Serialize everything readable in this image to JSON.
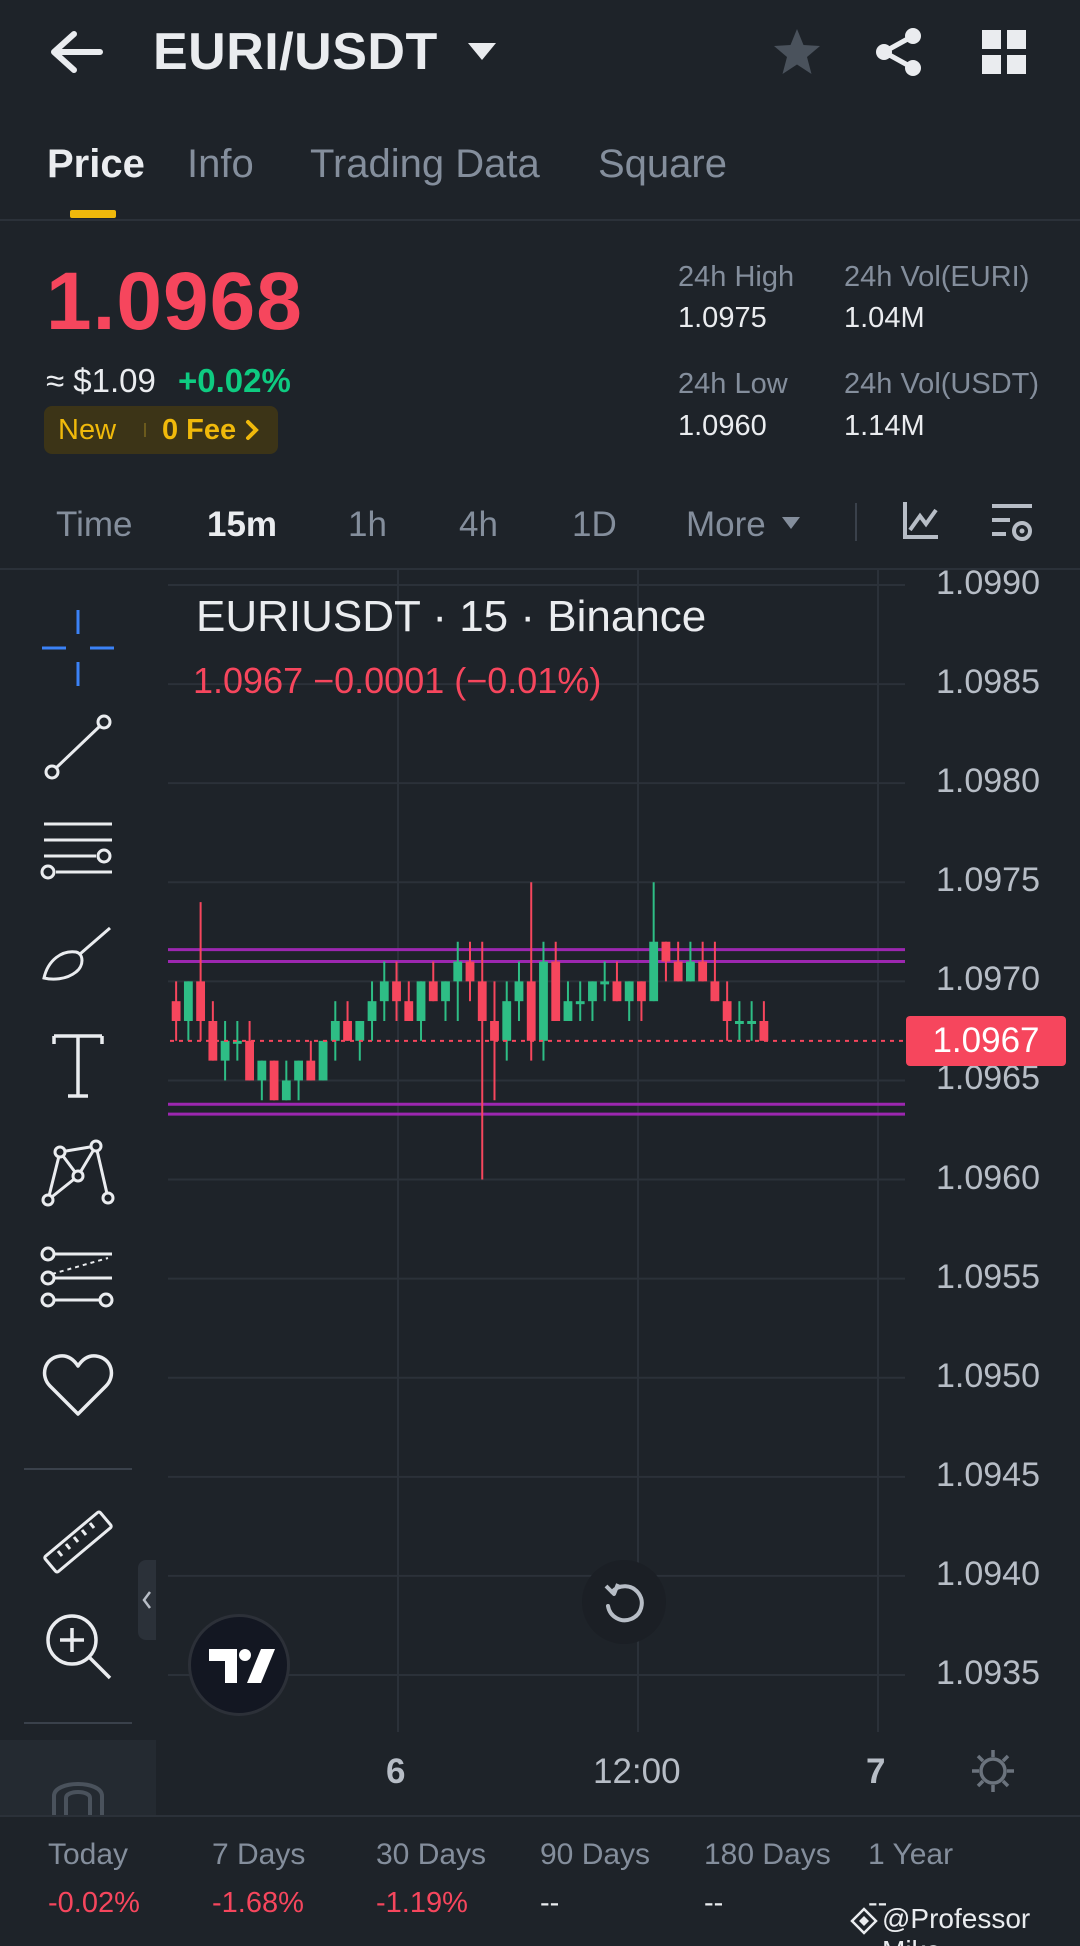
{
  "header": {
    "pair": "EURI/USDT"
  },
  "tabs": [
    "Price",
    "Info",
    "Trading Data",
    "Square"
  ],
  "ticker": {
    "last_price": "1.0968",
    "approx": "≈ $1.09",
    "change_pct": "+0.02%",
    "badge_new": "New",
    "badge_fee": "0 Fee",
    "high_label": "24h High",
    "high_value": "1.0975",
    "low_label": "24h Low",
    "low_value": "1.0960",
    "vol_base_label": "24h Vol(EURI)",
    "vol_base_value": "1.04M",
    "vol_quote_label": "24h Vol(USDT)",
    "vol_quote_value": "1.14M"
  },
  "intervals": {
    "time": "Time",
    "m15": "15m",
    "h1": "1h",
    "h4": "4h",
    "d1": "1D",
    "more": "More"
  },
  "chart": {
    "legend_title": "EURIUSDT · 15 · Binance",
    "legend_values": "1.0967  −0.0001 (−0.01%)",
    "current_price_tag": "1.0967",
    "x_ticks": [
      "6",
      "12:00",
      "7"
    ]
  },
  "chart_data": {
    "type": "candlestick",
    "symbol": "EURIUSDT",
    "interval": "15",
    "exchange": "Binance",
    "y_ticks": [
      "1.0990",
      "1.0985",
      "1.0980",
      "1.0975",
      "1.0970",
      "1.0965",
      "1.0960",
      "1.0955",
      "1.0950",
      "1.0945",
      "1.0940",
      "1.0935"
    ],
    "ylim": [
      1.0932,
      1.0991
    ],
    "last_price": 1.0967,
    "horizontal_lines": [
      1.09716,
      1.0971,
      1.09638,
      1.09633
    ],
    "candles": [
      [
        1.0969,
        1.097,
        1.0967,
        1.0968
      ],
      [
        1.0968,
        1.097,
        1.0967,
        1.097
      ],
      [
        1.097,
        1.0974,
        1.0967,
        1.0968
      ],
      [
        1.0968,
        1.0969,
        1.0966,
        1.0966
      ],
      [
        1.0966,
        1.0968,
        1.0965,
        1.0967
      ],
      [
        1.0967,
        1.0968,
        1.0966,
        1.0967
      ],
      [
        1.0967,
        1.0968,
        1.0965,
        1.0965
      ],
      [
        1.0965,
        1.0966,
        1.0964,
        1.0966
      ],
      [
        1.0966,
        1.0966,
        1.0964,
        1.0964
      ],
      [
        1.0964,
        1.0966,
        1.0964,
        1.0965
      ],
      [
        1.0965,
        1.0966,
        1.0964,
        1.0966
      ],
      [
        1.0966,
        1.0967,
        1.0965,
        1.0965
      ],
      [
        1.0965,
        1.0967,
        1.0965,
        1.0967
      ],
      [
        1.0967,
        1.0969,
        1.0966,
        1.0968
      ],
      [
        1.0968,
        1.0969,
        1.0967,
        1.0967
      ],
      [
        1.0967,
        1.0968,
        1.0966,
        1.0968
      ],
      [
        1.0968,
        1.097,
        1.0967,
        1.0969
      ],
      [
        1.0969,
        1.0971,
        1.0968,
        1.097
      ],
      [
        1.097,
        1.0971,
        1.0968,
        1.0969
      ],
      [
        1.0969,
        1.097,
        1.0968,
        1.0968
      ],
      [
        1.0968,
        1.097,
        1.0967,
        1.097
      ],
      [
        1.097,
        1.0971,
        1.0969,
        1.0969
      ],
      [
        1.0969,
        1.097,
        1.0968,
        1.097
      ],
      [
        1.097,
        1.0972,
        1.0968,
        1.0971
      ],
      [
        1.0971,
        1.0972,
        1.0969,
        1.097
      ],
      [
        1.097,
        1.0972,
        1.096,
        1.0968
      ],
      [
        1.0968,
        1.097,
        1.0964,
        1.0967
      ],
      [
        1.0967,
        1.097,
        1.0966,
        1.0969
      ],
      [
        1.0969,
        1.0971,
        1.0968,
        1.097
      ],
      [
        1.097,
        1.0975,
        1.0966,
        1.0967
      ],
      [
        1.0967,
        1.0972,
        1.0966,
        1.0971
      ],
      [
        1.0971,
        1.0972,
        1.0968,
        1.0968
      ],
      [
        1.0968,
        1.097,
        1.0968,
        1.0969
      ],
      [
        1.0969,
        1.097,
        1.0968,
        1.0969
      ],
      [
        1.0969,
        1.097,
        1.0968,
        1.097
      ],
      [
        1.097,
        1.0971,
        1.0969,
        1.097
      ],
      [
        1.097,
        1.0971,
        1.0969,
        1.0969
      ],
      [
        1.0969,
        1.097,
        1.0968,
        1.097
      ],
      [
        1.097,
        1.097,
        1.0968,
        1.0969
      ],
      [
        1.0969,
        1.0975,
        1.0969,
        1.0972
      ],
      [
        1.0972,
        1.0972,
        1.097,
        1.0971
      ],
      [
        1.0971,
        1.0972,
        1.097,
        1.097
      ],
      [
        1.097,
        1.0972,
        1.097,
        1.0971
      ],
      [
        1.0971,
        1.0972,
        1.097,
        1.097
      ],
      [
        1.097,
        1.0972,
        1.0969,
        1.0969
      ],
      [
        1.0969,
        1.097,
        1.0967,
        1.0968
      ],
      [
        1.0968,
        1.0969,
        1.0967,
        1.0968
      ],
      [
        1.0968,
        1.0969,
        1.0967,
        1.0968
      ],
      [
        1.0968,
        1.0969,
        1.0967,
        1.0967
      ]
    ]
  },
  "performance": {
    "labels": [
      "Today",
      "7 Days",
      "30 Days",
      "90 Days",
      "180 Days",
      "1 Year"
    ],
    "values": [
      "-0.02%",
      "-1.68%",
      "-1.19%",
      "--",
      "--",
      "--"
    ]
  },
  "colors": {
    "up": "#2ebd85",
    "down": "#f6465d",
    "accent": "#f0b90b",
    "purple": "#9c27b0",
    "bg": "#1e2329"
  },
  "watermark": "@Professor Mike"
}
